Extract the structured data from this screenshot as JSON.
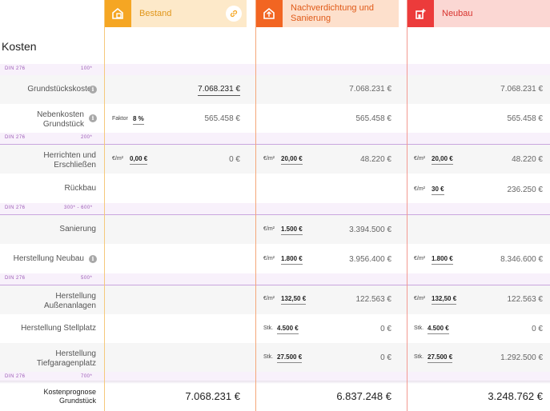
{
  "page_title": "Kosten",
  "columns": [
    {
      "title": "Bestand",
      "icon": "house-inventory-icon",
      "color": "#f5a623",
      "bg": "#fde9c9"
    },
    {
      "title": "Nachverdichtung und Sanierung",
      "icon": "house-upload-icon",
      "color": "#f26522",
      "bg": "#fde0cc"
    },
    {
      "title": "Neubau",
      "icon": "building-new-icon",
      "color": "#ec3b3b",
      "bg": "#fbd7d3"
    }
  ],
  "bands": [
    {
      "din": "DIN 276",
      "code": "100*"
    },
    {
      "din": "DIN 276",
      "code": "200*"
    },
    {
      "din": "DIN 276",
      "code": "300* - 600*"
    },
    {
      "din": "DIN 276",
      "code": "500*"
    },
    {
      "din": "DIN 276",
      "code": "700*"
    }
  ],
  "rows": {
    "grundstueck": {
      "label": "Grundstückskosten",
      "c1": "7.068.231 €",
      "c2": "7.068.231 €",
      "c3": "7.068.231 €"
    },
    "nebenkosten": {
      "label_1": "Nebenkosten",
      "label_2": "Grundstück",
      "factor_label": "Faktor",
      "factor_value": "8 %",
      "c1": "565.458 €",
      "c2": "565.458 €",
      "c3": "565.458 €"
    },
    "herrichten": {
      "label_1": "Herrichten und",
      "label_2": "Erschließen",
      "unit": "€/m²",
      "in1": "0,00 €",
      "c1": "0 €",
      "in2": "20,00 €",
      "c2": "48.220 €",
      "in3": "20,00 €",
      "c3": "48.220 €"
    },
    "rueckbau": {
      "label": "Rückbau",
      "unit": "€/m²",
      "in3": "30 €",
      "c3": "236.250 €"
    },
    "sanierung": {
      "label": "Sanierung",
      "unit": "€/m²",
      "in2": "1.500 €",
      "c2": "3.394.500 €"
    },
    "neubau": {
      "label": "Herstellung Neubau",
      "unit": "€/m²",
      "in2": "1.800 €",
      "c2": "3.956.400 €",
      "in3": "1.800 €",
      "c3": "8.346.600 €"
    },
    "aussen": {
      "label_1": "Herstellung",
      "label_2": "Außenanlagen",
      "unit": "€/m²",
      "in2": "132,50 €",
      "c2": "122.563 €",
      "in3": "132,50 €",
      "c3": "122.563 €"
    },
    "stellplatz": {
      "label": "Herstellung Stellplatz",
      "unit": "Stk.",
      "in2": "4.500 €",
      "c2": "0 €",
      "in3": "4.500 €",
      "c3": "0 €"
    },
    "tiefgarage": {
      "label_1": "Herstellung",
      "label_2": "Tiefgaragenplatz",
      "unit": "Stk.",
      "in2": "27.500 €",
      "c2": "0 €",
      "in3": "27.500 €",
      "c3": "1.292.500 €"
    }
  },
  "footer": {
    "label_1": "Kostenprognose",
    "label_2": "Grundstück",
    "c1": "7.068.231 €",
    "c2": "6.837.248 €",
    "c3": "3.248.762 €"
  }
}
